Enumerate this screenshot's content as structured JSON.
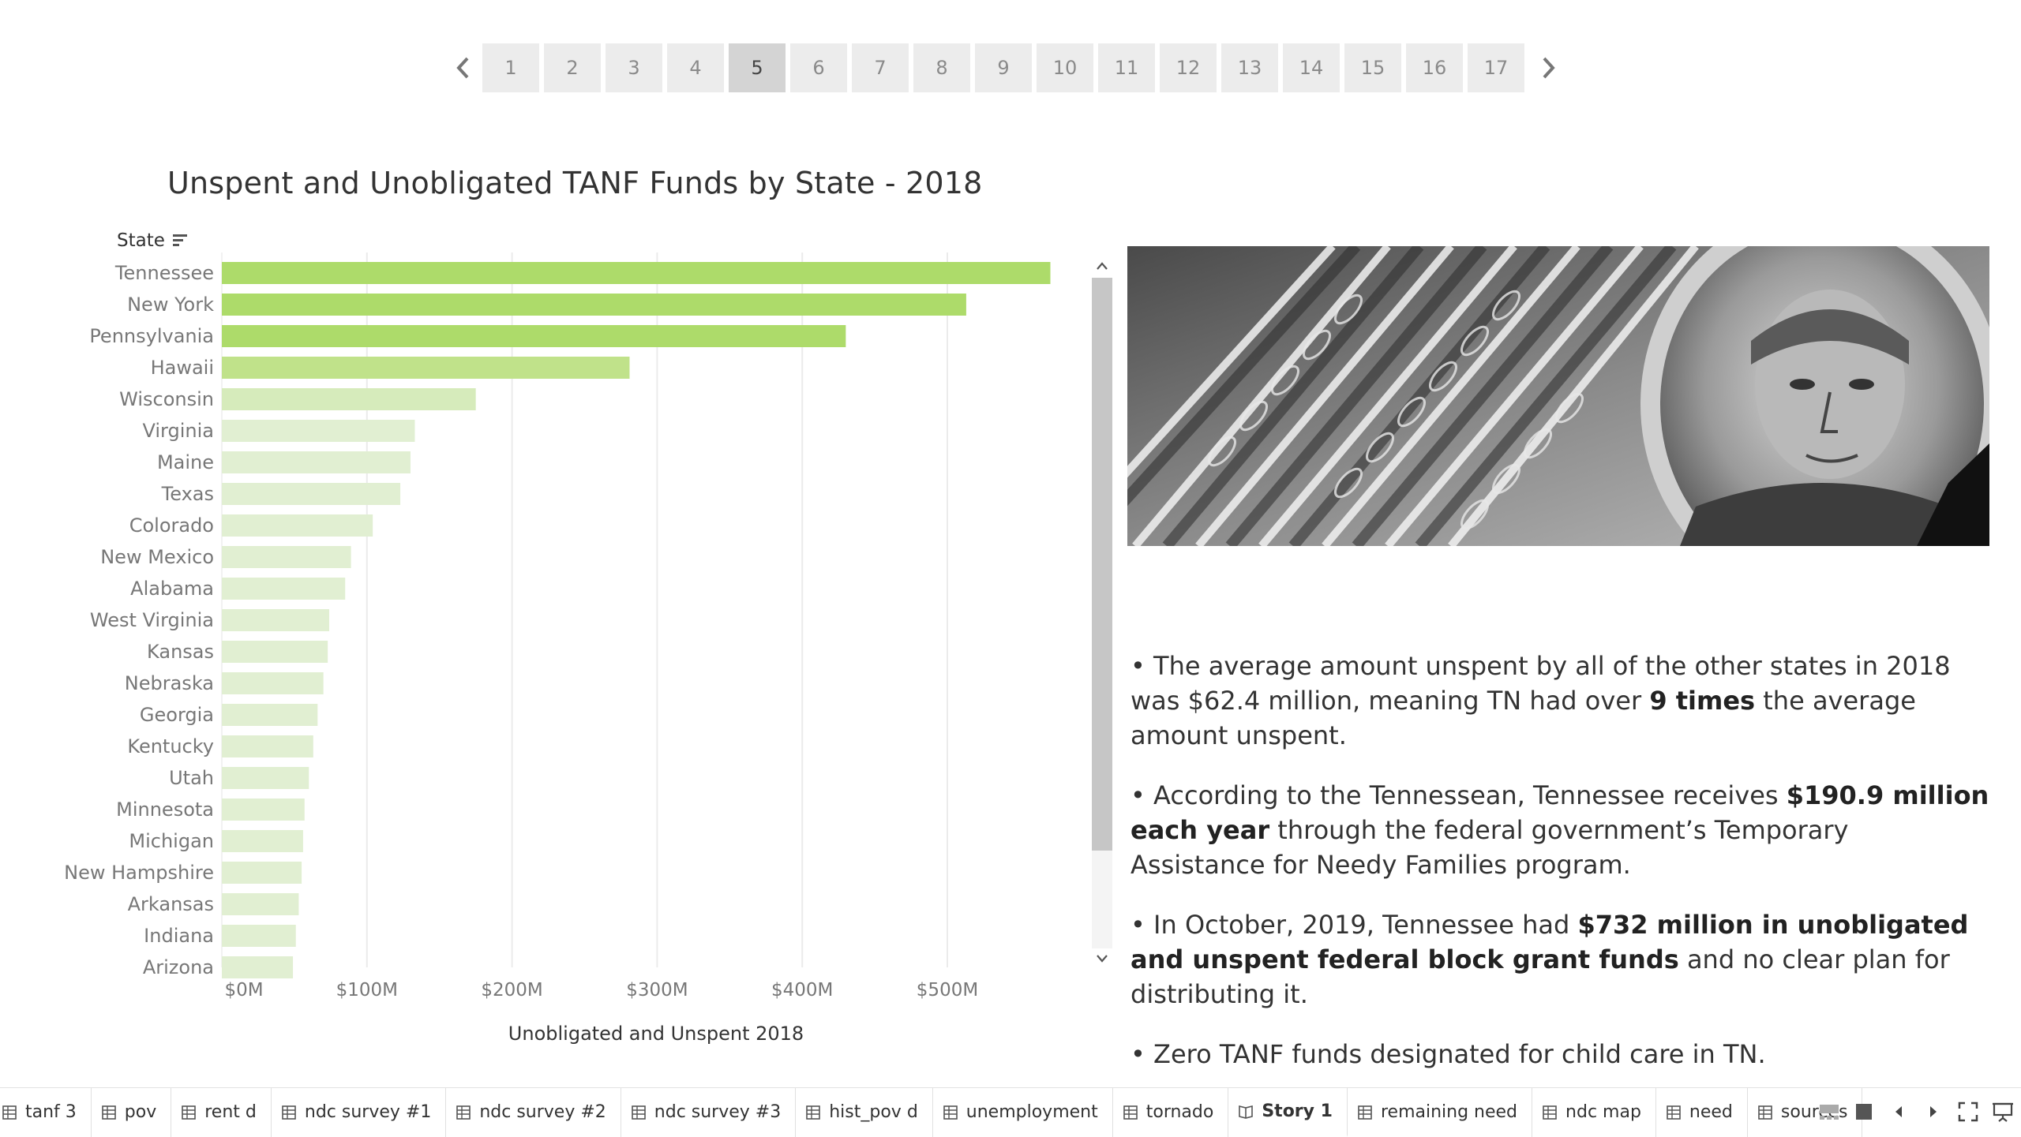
{
  "story_nav": {
    "prev_icon": "chevron-left-icon",
    "next_icon": "chevron-right-icon",
    "pages": [
      "1",
      "2",
      "3",
      "4",
      "5",
      "6",
      "7",
      "8",
      "9",
      "10",
      "11",
      "12",
      "13",
      "14",
      "15",
      "16",
      "17"
    ],
    "active_page": "5"
  },
  "chart_data": {
    "type": "bar",
    "orientation": "horizontal",
    "title": "Unspent and Unobligated TANF Funds by State - 2018",
    "row_header": "State",
    "xlabel": "Unobligated and Unspent 2018",
    "xlim": [
      0,
      600
    ],
    "x_ticks": [
      "$0M",
      "$100M",
      "$200M",
      "$300M",
      "$400M",
      "$500M"
    ],
    "x_tick_values": [
      0,
      100,
      200,
      300,
      400,
      500
    ],
    "categories": [
      "Tennessee",
      "New York",
      "Pennsylvania",
      "Hawaii",
      "Wisconsin",
      "Virginia",
      "Maine",
      "Texas",
      "Colorado",
      "New Mexico",
      "Alabama",
      "West Virginia",
      "Kansas",
      "Nebraska",
      "Georgia",
      "Kentucky",
      "Utah",
      "Minnesota",
      "Michigan",
      "New Hampshire",
      "Arkansas",
      "Indiana",
      "Arizona"
    ],
    "values": [
      571,
      513,
      430,
      281,
      175,
      133,
      130,
      123,
      104,
      89,
      85,
      74,
      73,
      70,
      66,
      63,
      60,
      57,
      56,
      55,
      53,
      51,
      49
    ],
    "grid": "vertical",
    "colors": {
      "high": "#addb6a",
      "mid": "#c0e28a",
      "low": "#d6ebbb",
      "lowest": "#e1efd2"
    }
  },
  "story_text": [
    [
      "• The average amount unspent by all of the other states in 2018 was $62.4 million, meaning TN had over ",
      "9 times",
      " the average amount unspent."
    ],
    [
      "• According to the Tennessean, Tennessee receives ",
      "$190.9 million each year",
      " through the federal government’s Temporary Assistance for Needy Families program."
    ],
    [
      "• In October, 2019, Tennessee had ",
      "$732 million in unobligated and unspent federal block grant funds",
      " and no clear plan for distributing it."
    ],
    [
      "• Zero TANF funds designated for child care in TN.",
      "",
      ""
    ]
  ],
  "tabs": [
    {
      "label": "tanf 3",
      "icon": "sheet-icon"
    },
    {
      "label": "pov",
      "icon": "sheet-icon"
    },
    {
      "label": "rent d",
      "icon": "sheet-icon"
    },
    {
      "label": "ndc survey #1",
      "icon": "sheet-icon"
    },
    {
      "label": "ndc survey #2",
      "icon": "sheet-icon"
    },
    {
      "label": "ndc survey #3",
      "icon": "sheet-icon"
    },
    {
      "label": "hist_pov d",
      "icon": "sheet-icon"
    },
    {
      "label": "unemployment",
      "icon": "sheet-icon"
    },
    {
      "label": "tornado",
      "icon": "sheet-icon"
    },
    {
      "label": "Story 1",
      "icon": "story-icon",
      "active": true
    },
    {
      "label": "remaining need",
      "icon": "sheet-icon"
    },
    {
      "label": "ndc map",
      "icon": "sheet-icon"
    },
    {
      "label": "need",
      "icon": "sheet-icon"
    },
    {
      "label": "sources",
      "icon": "sheet-icon"
    }
  ],
  "tab_controls": [
    "filmstrip-icon",
    "single-sheet-icon",
    "prev-sheet-icon",
    "next-sheet-icon",
    "fullscreen-icon",
    "presentation-icon"
  ]
}
